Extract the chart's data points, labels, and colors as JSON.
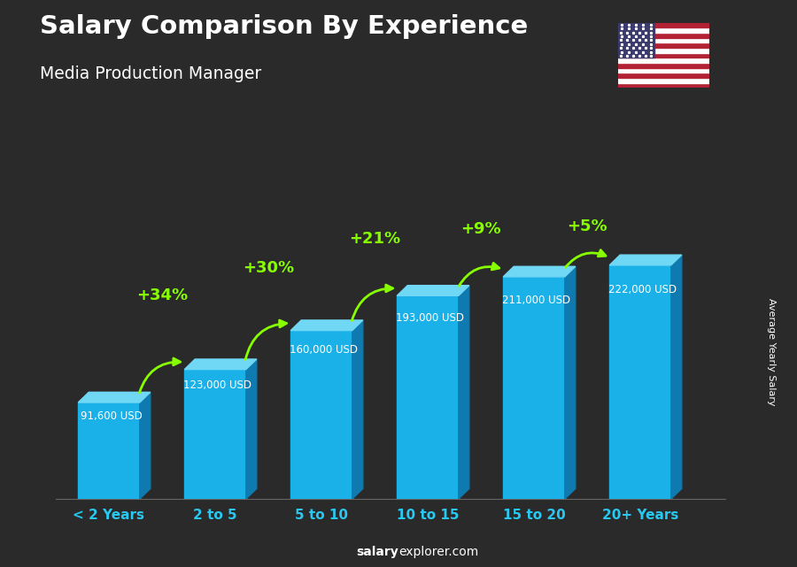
{
  "title": "Salary Comparison By Experience",
  "subtitle": "Media Production Manager",
  "categories": [
    "< 2 Years",
    "2 to 5",
    "5 to 10",
    "10 to 15",
    "15 to 20",
    "20+ Years"
  ],
  "values": [
    91600,
    123000,
    160000,
    193000,
    211000,
    222000
  ],
  "labels": [
    "91,600 USD",
    "123,000 USD",
    "160,000 USD",
    "193,000 USD",
    "211,000 USD",
    "222,000 USD"
  ],
  "pct_labels": [
    "+34%",
    "+30%",
    "+21%",
    "+9%",
    "+5%"
  ],
  "bar_color_face": "#1ab0e8",
  "bar_color_top": "#70d8f5",
  "bar_color_side": "#0e7ab0",
  "bar_width": 0.58,
  "ylim": [
    0,
    280000
  ],
  "ylabel": "Average Yearly Salary",
  "footer_bold": "salary",
  "footer_normal": "explorer.com",
  "title_color": "#ffffff",
  "subtitle_color": "#ffffff",
  "label_color": "#ffffff",
  "pct_color": "#88ff00",
  "xlabel_color": "#29c8f0",
  "bg_color": "#2a2a2a"
}
